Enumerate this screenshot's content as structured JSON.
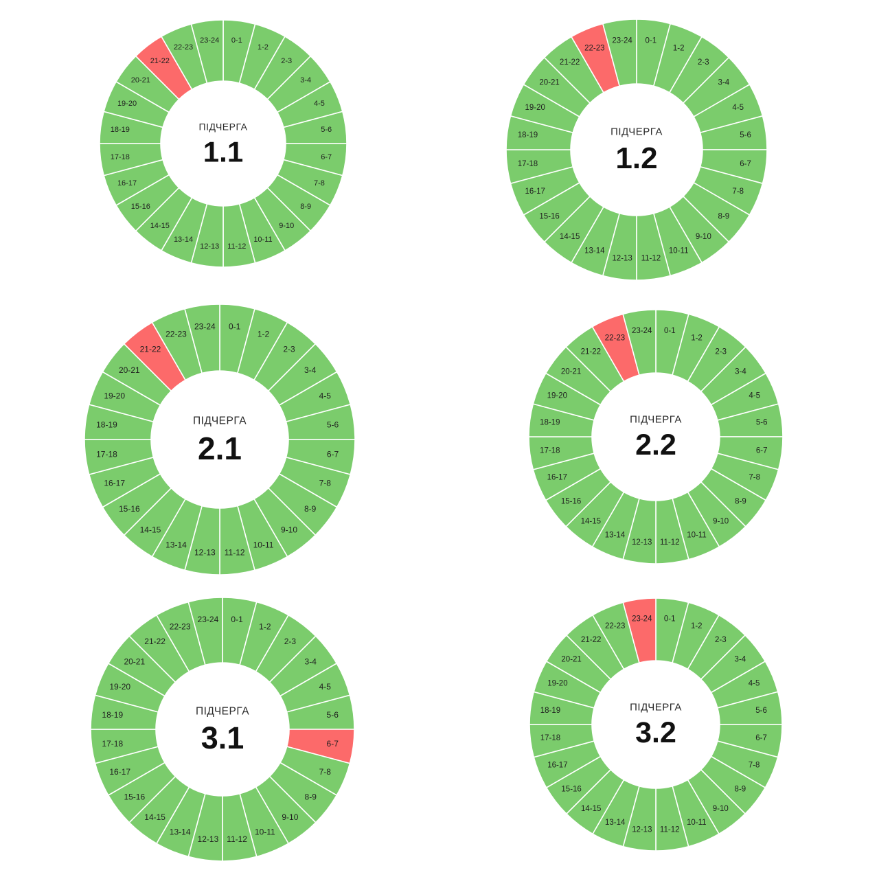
{
  "colors": {
    "on": "#7bcc6c",
    "off": "#fc6a6a",
    "divider": "#ffffff",
    "background": "#ffffff"
  },
  "caption": "ПІДЧЕРГА",
  "hour_labels": [
    "0-1",
    "1-2",
    "2-3",
    "3-4",
    "4-5",
    "5-6",
    "6-7",
    "7-8",
    "8-9",
    "9-10",
    "10-11",
    "11-12",
    "12-13",
    "13-14",
    "14-15",
    "15-16",
    "16-17",
    "17-18",
    "18-19",
    "19-20",
    "20-21",
    "21-22",
    "22-23",
    "23-24"
  ],
  "chart_data": [
    {
      "type": "pie",
      "title": "1.1",
      "categories_ref": "hour_labels",
      "values": [
        1,
        1,
        1,
        1,
        1,
        1,
        1,
        1,
        1,
        1,
        1,
        1,
        1,
        1,
        1,
        1,
        1,
        1,
        1,
        1,
        1,
        1,
        1,
        1
      ],
      "off_hours": [
        "21-22"
      ]
    },
    {
      "type": "pie",
      "title": "1.2",
      "categories_ref": "hour_labels",
      "values": [
        1,
        1,
        1,
        1,
        1,
        1,
        1,
        1,
        1,
        1,
        1,
        1,
        1,
        1,
        1,
        1,
        1,
        1,
        1,
        1,
        1,
        1,
        1,
        1
      ],
      "off_hours": [
        "22-23"
      ]
    },
    {
      "type": "pie",
      "title": "2.1",
      "categories_ref": "hour_labels",
      "values": [
        1,
        1,
        1,
        1,
        1,
        1,
        1,
        1,
        1,
        1,
        1,
        1,
        1,
        1,
        1,
        1,
        1,
        1,
        1,
        1,
        1,
        1,
        1,
        1
      ],
      "off_hours": [
        "21-22"
      ]
    },
    {
      "type": "pie",
      "title": "2.2",
      "categories_ref": "hour_labels",
      "values": [
        1,
        1,
        1,
        1,
        1,
        1,
        1,
        1,
        1,
        1,
        1,
        1,
        1,
        1,
        1,
        1,
        1,
        1,
        1,
        1,
        1,
        1,
        1,
        1
      ],
      "off_hours": [
        "22-23"
      ]
    },
    {
      "type": "pie",
      "title": "3.1",
      "categories_ref": "hour_labels",
      "values": [
        1,
        1,
        1,
        1,
        1,
        1,
        1,
        1,
        1,
        1,
        1,
        1,
        1,
        1,
        1,
        1,
        1,
        1,
        1,
        1,
        1,
        1,
        1,
        1
      ],
      "off_hours": [
        "6-7"
      ]
    },
    {
      "type": "pie",
      "title": "3.2",
      "categories_ref": "hour_labels",
      "values": [
        1,
        1,
        1,
        1,
        1,
        1,
        1,
        1,
        1,
        1,
        1,
        1,
        1,
        1,
        1,
        1,
        1,
        1,
        1,
        1,
        1,
        1,
        1,
        1
      ],
      "off_hours": [
        "23-24"
      ]
    }
  ]
}
